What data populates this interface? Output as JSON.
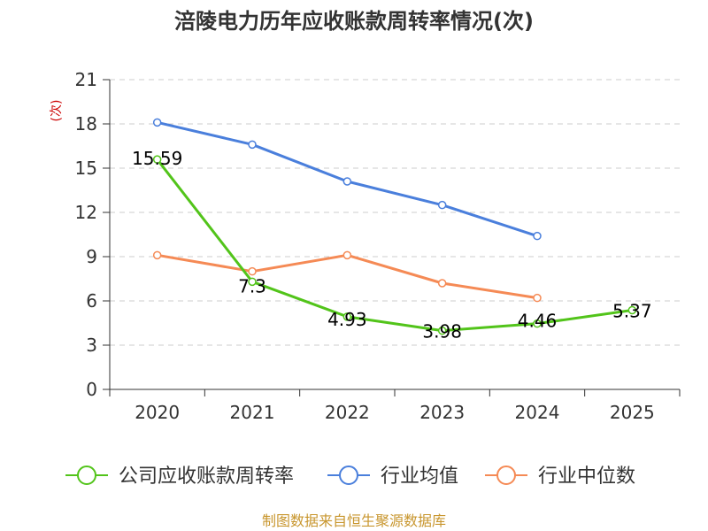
{
  "chart_data": {
    "type": "line",
    "title": "涪陵电力历年应收账款周转率情况(次)",
    "ylabel": "(次)",
    "xlabel": "",
    "categories": [
      "2020",
      "2021",
      "2022",
      "2023",
      "2024",
      "2025"
    ],
    "ylim": [
      0,
      21
    ],
    "yticks": [
      0,
      3,
      6,
      9,
      12,
      15,
      18,
      21
    ],
    "series": [
      {
        "name": "公司应收账款周转率",
        "color": "#52c41a",
        "values": [
          15.59,
          7.3,
          4.93,
          3.98,
          4.46,
          5.37
        ],
        "labels": [
          "15.59",
          "7.3",
          "4.93",
          "3.98",
          "4.46",
          "5.37"
        ]
      },
      {
        "name": "行业均值",
        "color": "#4a7fdc",
        "values": [
          18.1,
          16.6,
          14.1,
          12.5,
          10.4,
          null
        ]
      },
      {
        "name": "行业中位数",
        "color": "#f58a55",
        "values": [
          9.1,
          8.0,
          9.1,
          7.2,
          6.2,
          null
        ]
      }
    ],
    "grid": true,
    "legend_position": "bottom",
    "source": "制图数据来自恒生聚源数据库"
  }
}
